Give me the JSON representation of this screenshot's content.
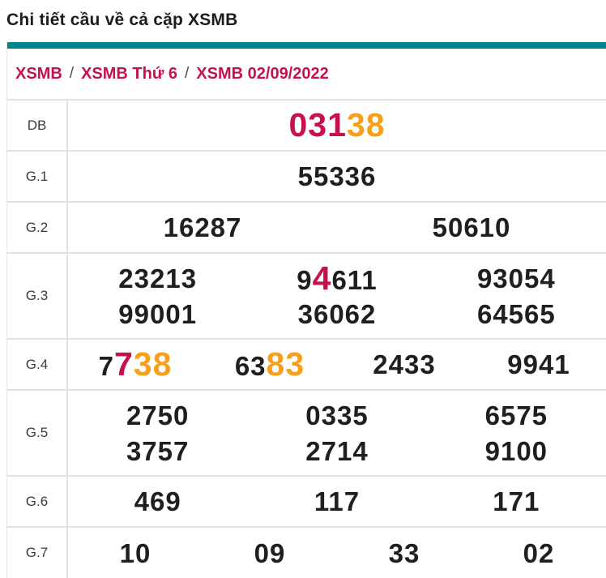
{
  "page": {
    "title": "Chi tiết cầu về cả cặp XSMB"
  },
  "colors": {
    "accent": "#00838C",
    "highlight_red": "#C5124F",
    "highlight_orange": "#F8A01B",
    "number": "#1F1F1F"
  },
  "breadcrumb": {
    "separator": "/",
    "items": [
      "XSMB",
      "XSMB Thứ 6",
      "XSMB 02/09/2022"
    ]
  },
  "results": {
    "rows": [
      {
        "label": "DB",
        "lines": [
          [
            [
              {
                "t": "031",
                "c": "red"
              },
              {
                "t": "38",
                "c": "orange"
              }
            ]
          ]
        ]
      },
      {
        "label": "G.1",
        "lines": [
          [
            [
              {
                "t": "55336",
                "c": "dark"
              }
            ]
          ]
        ]
      },
      {
        "label": "G.2",
        "lines": [
          [
            [
              {
                "t": "16287",
                "c": "dark"
              }
            ],
            [
              {
                "t": "50610",
                "c": "dark"
              }
            ]
          ]
        ]
      },
      {
        "label": "G.3",
        "lines": [
          [
            [
              {
                "t": "23213",
                "c": "dark"
              }
            ],
            [
              {
                "t": "9",
                "c": "dark"
              },
              {
                "t": "4",
                "c": "red"
              },
              {
                "t": "611",
                "c": "dark"
              }
            ],
            [
              {
                "t": "93054",
                "c": "dark"
              }
            ]
          ],
          [
            [
              {
                "t": "99001",
                "c": "dark"
              }
            ],
            [
              {
                "t": "36062",
                "c": "dark"
              }
            ],
            [
              {
                "t": "64565",
                "c": "dark"
              }
            ]
          ]
        ]
      },
      {
        "label": "G.4",
        "lines": [
          [
            [
              {
                "t": "7",
                "c": "dark"
              },
              {
                "t": "7",
                "c": "red"
              },
              {
                "t": "38",
                "c": "orange"
              }
            ],
            [
              {
                "t": "63",
                "c": "dark"
              },
              {
                "t": "83",
                "c": "orange"
              }
            ],
            [
              {
                "t": "2433",
                "c": "dark"
              }
            ],
            [
              {
                "t": "9941",
                "c": "dark"
              }
            ]
          ]
        ]
      },
      {
        "label": "G.5",
        "lines": [
          [
            [
              {
                "t": "2750",
                "c": "dark"
              }
            ],
            [
              {
                "t": "0335",
                "c": "dark"
              }
            ],
            [
              {
                "t": "6575",
                "c": "dark"
              }
            ]
          ],
          [
            [
              {
                "t": "3757",
                "c": "dark"
              }
            ],
            [
              {
                "t": "2714",
                "c": "dark"
              }
            ],
            [
              {
                "t": "9100",
                "c": "dark"
              }
            ]
          ]
        ]
      },
      {
        "label": "G.6",
        "lines": [
          [
            [
              {
                "t": "469",
                "c": "dark"
              }
            ],
            [
              {
                "t": "117",
                "c": "dark"
              }
            ],
            [
              {
                "t": "171",
                "c": "dark"
              }
            ]
          ]
        ]
      },
      {
        "label": "G.7",
        "lines": [
          [
            [
              {
                "t": "10",
                "c": "dark"
              }
            ],
            [
              {
                "t": "09",
                "c": "dark"
              }
            ],
            [
              {
                "t": "33",
                "c": "dark"
              }
            ],
            [
              {
                "t": "02",
                "c": "dark"
              }
            ]
          ]
        ]
      }
    ]
  }
}
